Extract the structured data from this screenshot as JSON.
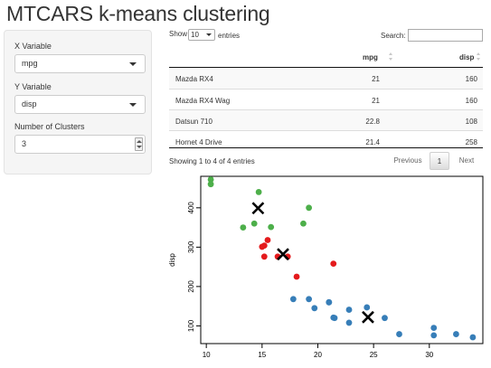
{
  "app": {
    "title": "MTCARS k-means clustering"
  },
  "sidebar": {
    "x_variable": {
      "label": "X Variable",
      "value": "mpg"
    },
    "y_variable": {
      "label": "Y Variable",
      "value": "disp"
    },
    "clusters": {
      "label": "Number of Clusters",
      "value": "3"
    }
  },
  "table": {
    "length": {
      "show_label": "Show",
      "value": "10",
      "entries_label": "entries"
    },
    "search": {
      "label": "Search:",
      "value": ""
    },
    "columns": [
      "",
      "mpg",
      "disp"
    ],
    "rows": [
      {
        "name": "Mazda RX4",
        "mpg": "21",
        "disp": "160"
      },
      {
        "name": "Mazda RX4 Wag",
        "mpg": "21",
        "disp": "160"
      },
      {
        "name": "Datsun 710",
        "mpg": "22.8",
        "disp": "108"
      },
      {
        "name": "Hornet 4 Drive",
        "mpg": "21.4",
        "disp": "258"
      }
    ],
    "info": "Showing 1 to 4 of 4 entries",
    "pagination": {
      "previous": "Previous",
      "current": "1",
      "next": "Next"
    }
  },
  "chart_data": {
    "type": "scatter",
    "xlabel": "",
    "ylabel": "disp",
    "xlim": [
      9.5,
      34.8
    ],
    "ylim": [
      55,
      480
    ],
    "xticks": [
      10,
      15,
      20,
      25,
      30
    ],
    "yticks": [
      100,
      200,
      300,
      400
    ],
    "grid": false,
    "legend": "none",
    "series": [
      {
        "color": "#4daf4a",
        "points": [
          [
            10.4,
            472
          ],
          [
            10.4,
            460
          ],
          [
            14.7,
            440
          ],
          [
            13.3,
            350
          ],
          [
            14.3,
            360
          ],
          [
            15.8,
            351
          ],
          [
            19.2,
            400
          ],
          [
            18.7,
            360
          ]
        ]
      },
      {
        "color": "#e41a1c",
        "points": [
          [
            15.2,
            304
          ],
          [
            15.5,
            318
          ],
          [
            15.0,
            301
          ],
          [
            16.4,
            276
          ],
          [
            15.2,
            276
          ],
          [
            17.3,
            276
          ],
          [
            18.1,
            225
          ],
          [
            21.4,
            258
          ]
        ]
      },
      {
        "color": "#377eb8",
        "points": [
          [
            21.0,
            160
          ],
          [
            21.0,
            160
          ],
          [
            22.8,
            108
          ],
          [
            24.4,
            147
          ],
          [
            22.8,
            141
          ],
          [
            19.2,
            168
          ],
          [
            17.8,
            168
          ],
          [
            32.4,
            79
          ],
          [
            30.4,
            76
          ],
          [
            33.9,
            71
          ],
          [
            21.5,
            120
          ],
          [
            27.3,
            79
          ],
          [
            26.0,
            120
          ],
          [
            30.4,
            95
          ],
          [
            21.4,
            121
          ],
          [
            19.7,
            145
          ]
        ]
      }
    ],
    "centers": [
      [
        14.64,
        399
      ],
      [
        16.88,
        282
      ],
      [
        24.5,
        122
      ]
    ]
  }
}
